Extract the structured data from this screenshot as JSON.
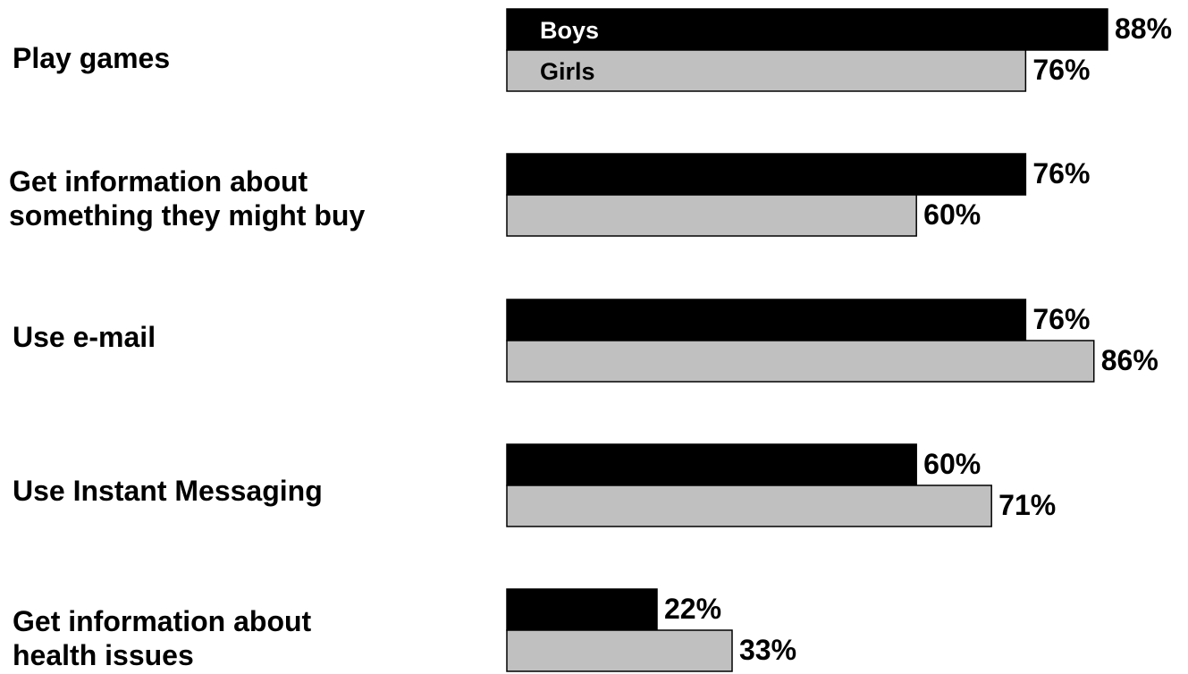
{
  "chart_data": {
    "type": "bar",
    "orientation": "horizontal",
    "categories": [
      "Play games",
      "Get information about\nsomething they might buy",
      "Use e-mail",
      "Use Instant Messaging",
      "Get information about\nhealth issues"
    ],
    "series": [
      {
        "name": "Boys",
        "values": [
          88,
          76,
          76,
          60,
          22
        ],
        "color": "#000000",
        "value_labels": [
          "88%",
          "76%",
          "76%",
          "60%",
          "22%"
        ]
      },
      {
        "name": "Girls",
        "values": [
          76,
          60,
          86,
          71,
          33
        ],
        "color": "#c0c0c0",
        "value_labels": [
          "76%",
          "60%",
          "86%",
          "71%",
          "33%"
        ]
      }
    ],
    "unit": "%",
    "legend": "inside-first-bars",
    "grid": false,
    "title": "",
    "xlabel": "",
    "ylabel": ""
  }
}
